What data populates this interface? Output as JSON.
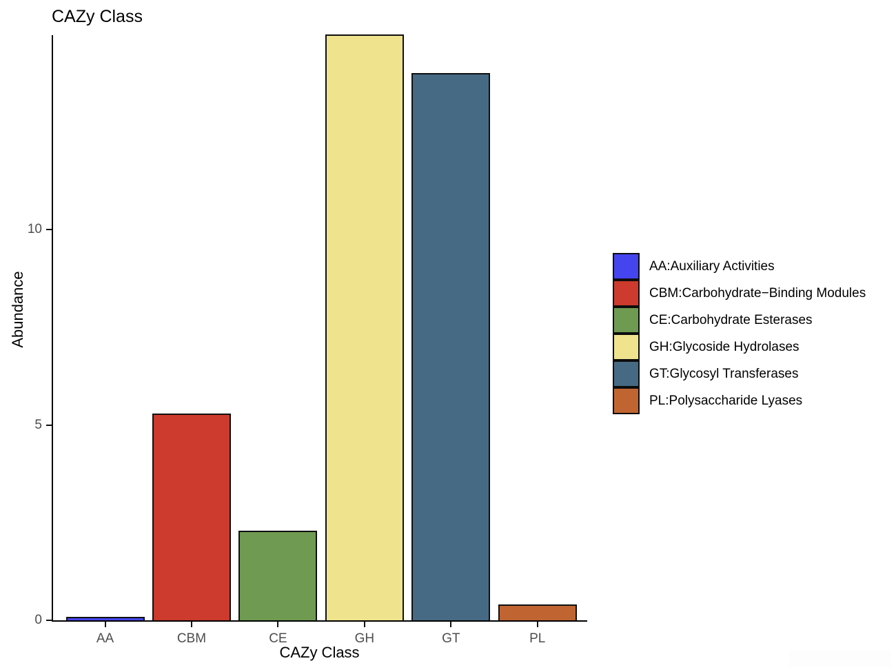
{
  "title": "CAZy Class",
  "axis": {
    "x_title": "CAZy Class",
    "y_title": "Abundance"
  },
  "colors": {
    "background": "#ffffff",
    "axis_line": "#000000",
    "tick_label": "#4d4d4d",
    "bar_border": "#101010"
  },
  "chart_data": {
    "type": "bar",
    "title": "CAZy Class",
    "xlabel": "CAZy Class",
    "ylabel": "Abundance",
    "categories": [
      "AA",
      "CBM",
      "CE",
      "GH",
      "GT",
      "PL"
    ],
    "values": [
      0.08,
      5.3,
      2.3,
      15.0,
      14.0,
      0.4
    ],
    "bar_colors": [
      "#4545f0",
      "#cc3b2d",
      "#6f9a52",
      "#efe48d",
      "#466a84",
      "#c06532"
    ],
    "ylim": [
      0,
      15.03
    ],
    "yticks": [
      0,
      5,
      10
    ],
    "grid": false,
    "legend_position": "right",
    "legend": [
      {
        "label": "AA:Auxiliary Activities",
        "color": "#4545f0"
      },
      {
        "label": "CBM:Carbohydrate−Binding Modules",
        "color": "#cc3b2d"
      },
      {
        "label": "CE:Carbohydrate Esterases",
        "color": "#6f9a52"
      },
      {
        "label": "GH:Glycoside Hydrolases",
        "color": "#efe48d"
      },
      {
        "label": "GT:Glycosyl Transferases",
        "color": "#466a84"
      },
      {
        "label": "PL:Polysaccharide Lyases",
        "color": "#c06532"
      }
    ]
  }
}
